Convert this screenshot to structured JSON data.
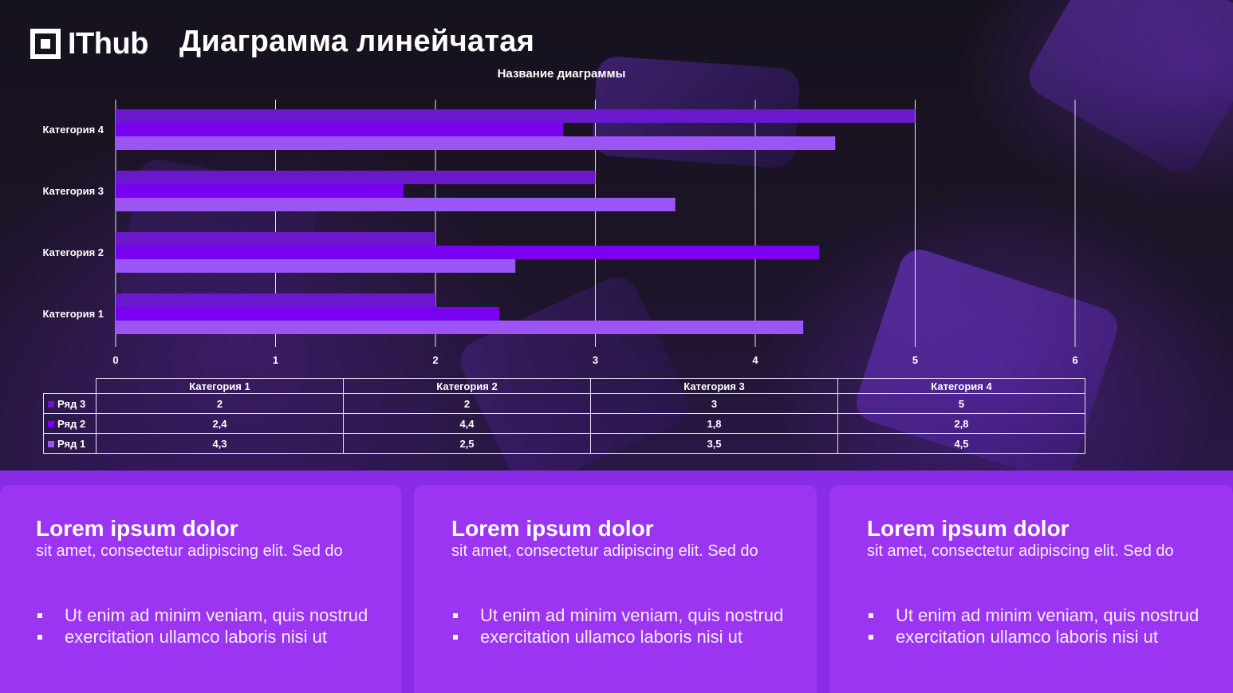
{
  "logo": {
    "text": "IThub"
  },
  "slide": {
    "title": "Диаграмма линейчатая"
  },
  "chart_data": {
    "type": "bar",
    "orientation": "horizontal",
    "title": "Название диаграммы",
    "categories": [
      "Категория 1",
      "Категория 2",
      "Категория 3",
      "Категория 4"
    ],
    "series": [
      {
        "name": "Ряд 1",
        "color": "#9b55f5",
        "values": [
          4.3,
          2.5,
          3.5,
          4.5
        ]
      },
      {
        "name": "Ряд 2",
        "color": "#7a00f2",
        "values": [
          2.4,
          4.4,
          1.8,
          2.8
        ]
      },
      {
        "name": "Ряд 3",
        "color": "#6b17cc",
        "values": [
          2,
          2,
          3,
          5
        ]
      }
    ],
    "xlim": [
      0,
      6
    ],
    "ticks": [
      0,
      1,
      2,
      3,
      4,
      5,
      6
    ],
    "grid": true,
    "data_table": {
      "rows": [
        {
          "name": "Ряд 3",
          "color": "#6b17cc",
          "values": [
            "2",
            "2",
            "3",
            "5"
          ]
        },
        {
          "name": "Ряд 2",
          "color": "#7a00f2",
          "values": [
            "2,4",
            "4,4",
            "1,8",
            "2,8"
          ]
        },
        {
          "name": "Ряд 1",
          "color": "#9b55f5",
          "values": [
            "4,3",
            "2,5",
            "3,5",
            "4,5"
          ]
        }
      ]
    }
  },
  "cards": [
    {
      "title": "Lorem ipsum dolor",
      "subtitle": "sit amet, consectetur adipiscing elit. Sed do",
      "bullets": [
        "Ut enim ad minim veniam, quis nostrud",
        "exercitation ullamco laboris nisi ut"
      ]
    },
    {
      "title": "Lorem ipsum dolor",
      "subtitle": "sit amet, consectetur adipiscing elit. Sed do",
      "bullets": [
        "Ut enim ad minim veniam, quis nostrud",
        "exercitation ullamco laboris nisi ut"
      ]
    },
    {
      "title": "Lorem ipsum dolor",
      "subtitle": "sit amet, consectetur adipiscing elit. Sed do",
      "bullets": [
        "Ut enim ad minim veniam, quis nostrud",
        "exercitation ullamco laboris nisi ut"
      ]
    }
  ]
}
